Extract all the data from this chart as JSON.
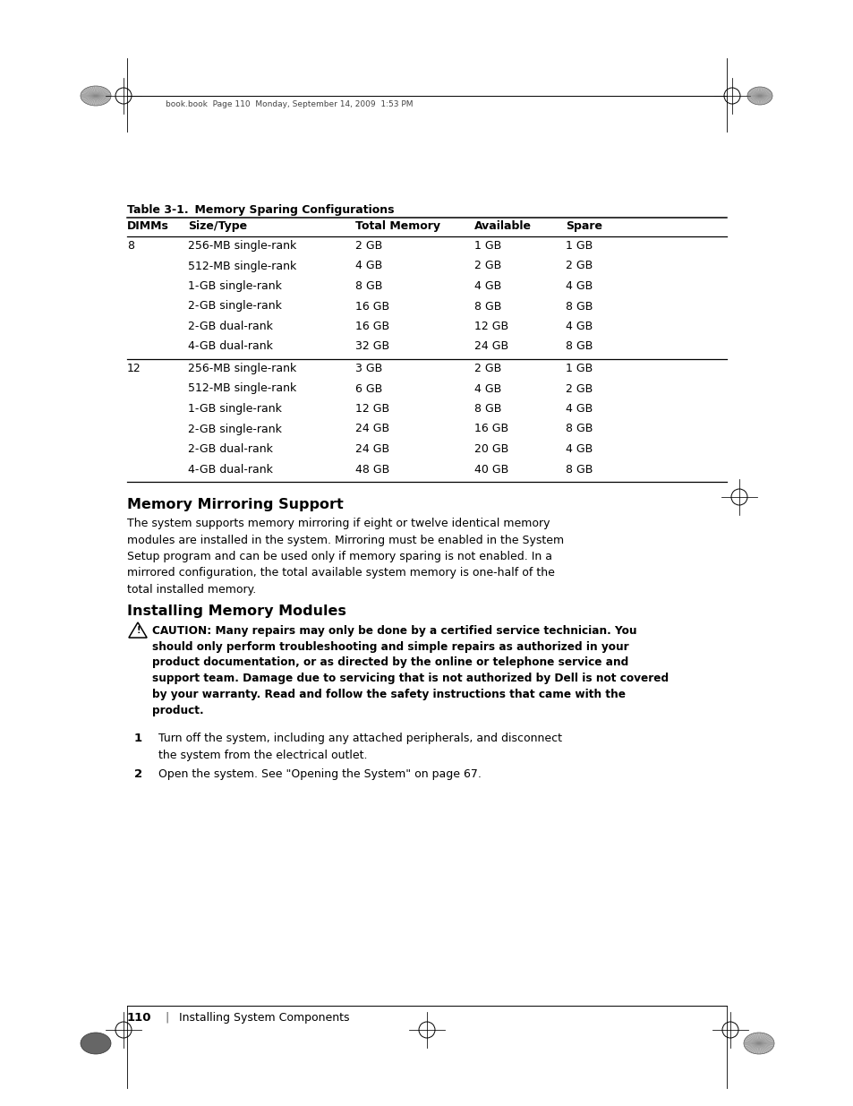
{
  "page_header_text": "book.book  Page 110  Monday, September 14, 2009  1:53 PM",
  "table_title_bold": "Table 3-1.",
  "table_title_normal": "    Memory Sparing Configurations",
  "table_headers": [
    "DIMMs",
    "Size/Type",
    "Total Memory",
    "Available",
    "Spare"
  ],
  "table_rows_8": [
    [
      "8",
      "256-MB single-rank",
      "2 GB",
      "1 GB",
      "1 GB"
    ],
    [
      "",
      "512-MB single-rank",
      "4 GB",
      "2 GB",
      "2 GB"
    ],
    [
      "",
      "1-GB single-rank",
      "8 GB",
      "4 GB",
      "4 GB"
    ],
    [
      "",
      "2-GB single-rank",
      "16 GB",
      "8 GB",
      "8 GB"
    ],
    [
      "",
      "2-GB dual-rank",
      "16 GB",
      "12 GB",
      "4 GB"
    ],
    [
      "",
      "4-GB dual-rank",
      "32 GB",
      "24 GB",
      "8 GB"
    ]
  ],
  "table_rows_12": [
    [
      "12",
      "256-MB single-rank",
      "3 GB",
      "2 GB",
      "1 GB"
    ],
    [
      "",
      "512-MB single-rank",
      "6 GB",
      "4 GB",
      "2 GB"
    ],
    [
      "",
      "1-GB single-rank",
      "12 GB",
      "8 GB",
      "4 GB"
    ],
    [
      "",
      "2-GB single-rank",
      "24 GB",
      "16 GB",
      "8 GB"
    ],
    [
      "",
      "2-GB dual-rank",
      "24 GB",
      "20 GB",
      "4 GB"
    ],
    [
      "",
      "4-GB dual-rank",
      "48 GB",
      "40 GB",
      "8 GB"
    ]
  ],
  "section1_title": "Memory Mirroring Support",
  "section1_body": "The system supports memory mirroring if eight or twelve identical memory\nmodules are installed in the system. Mirroring must be enabled in the System\nSetup program and can be used only if memory sparing is not enabled. In a\nmirrored configuration, the total available system memory is one-half of the\ntotal installed memory.",
  "section2_title": "Installing Memory Modules",
  "caution_label": "CAUTION:",
  "caution_body": " Many repairs may only be done by a certified service technician. You\nshould only perform troubleshooting and simple repairs as authorized in your\nproduct documentation, or as directed by the online or telephone service and\nsupport team. Damage due to servicing that is not authorized by Dell is not covered\nby your warranty. Read and follow the safety instructions that came with the\nproduct.",
  "step1_num": "1",
  "step1_text": "Turn off the system, including any attached peripherals, and disconnect\nthe system from the electrical outlet.",
  "step2_num": "2",
  "step2_text": "Open the system. See \"Opening the System\" on page 67.",
  "footer_page": "110",
  "footer_sep": "|",
  "footer_text": "Installing System Components",
  "bg_color": "#ffffff"
}
